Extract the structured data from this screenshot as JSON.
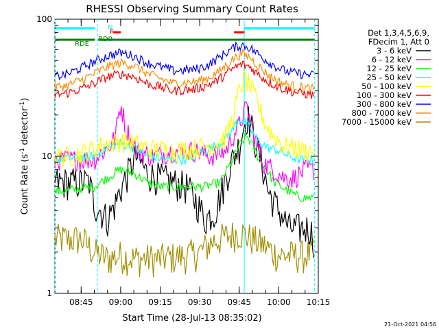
{
  "chart_data": {
    "type": "line",
    "title": "RHESSI Observing Summary Count Rates",
    "xlabel": "Start Time (28-Jul-13 08:35:02)",
    "ylabel_main": "Count Rate (s",
    "ylabel_exp": "-1",
    "ylabel_rest": " detector",
    "ylabel_close": ")",
    "y_scale": "log",
    "ylim": [
      1,
      100
    ],
    "y_ticks": [
      {
        "value": 1,
        "label": "1"
      },
      {
        "value": 10,
        "label": "10"
      },
      {
        "value": 100,
        "label": "100"
      }
    ],
    "xlim": [
      35.03,
      135
    ],
    "x_unit": "minutes after 08:00",
    "x_ticks": [
      {
        "value": 45,
        "label": "08:45"
      },
      {
        "value": 60,
        "label": "09:00"
      },
      {
        "value": 75,
        "label": "09:15"
      },
      {
        "value": 90,
        "label": "09:30"
      },
      {
        "value": 105,
        "label": "09:45"
      },
      {
        "value": 120,
        "label": "10:00"
      },
      {
        "value": 135,
        "label": "10:15"
      }
    ],
    "legend_header": [
      "Det 1,3,4,5,6,9,",
      "FDecim 1, Att 0"
    ],
    "legend_position": "right",
    "series": [
      {
        "name": "3 - 6 keV",
        "color": "#000000",
        "x": [
          35,
          48,
          50,
          55,
          58,
          62,
          66,
          70,
          80,
          85,
          92,
          96,
          99,
          102,
          105,
          108,
          112,
          116,
          120,
          124,
          126,
          130,
          132,
          133
        ],
        "values": [
          6.5,
          6.5,
          4.5,
          3.5,
          4.5,
          7.0,
          10.0,
          7.5,
          6.5,
          6.0,
          3.5,
          4.0,
          6.0,
          9.0,
          12.0,
          20.0,
          11.0,
          5.5,
          4.0,
          3.0,
          3.0,
          3.0,
          3.0,
          2.5
        ]
      },
      {
        "name": "6 - 12 keV",
        "color": "#ff00ff",
        "x": [
          35,
          50,
          56,
          58,
          60,
          62,
          66,
          72,
          80,
          88,
          94,
          100,
          105,
          108,
          110,
          114,
          118,
          122,
          126,
          130,
          133
        ],
        "values": [
          9.5,
          9.5,
          12.0,
          14.0,
          24.0,
          16.0,
          11.0,
          10.0,
          11.0,
          11.0,
          10.0,
          11.0,
          17.0,
          23.0,
          15.0,
          9.0,
          8.0,
          7.0,
          7.0,
          8.0,
          8.0
        ]
      },
      {
        "name": "12 - 25 keV",
        "color": "#00ff00",
        "x": [
          35,
          50,
          55,
          60,
          65,
          70,
          75,
          85,
          92,
          98,
          102,
          105,
          108,
          112,
          118,
          124,
          128,
          133
        ],
        "values": [
          5.5,
          6.0,
          7.0,
          8.0,
          7.5,
          6.5,
          6.0,
          6.0,
          6.0,
          6.5,
          9.0,
          12.0,
          14.0,
          10.0,
          6.5,
          5.5,
          5.0,
          5.0
        ]
      },
      {
        "name": "25 - 50 keV",
        "color": "#00ffff",
        "x": [
          35,
          50,
          55,
          60,
          65,
          70,
          78,
          85,
          92,
          98,
          102,
          105,
          108,
          112,
          116,
          120,
          124,
          128,
          133
        ],
        "values": [
          9.5,
          10.0,
          11.5,
          12.5,
          11.5,
          10.0,
          9.5,
          9.5,
          11.0,
          12.5,
          15.0,
          19.0,
          17.0,
          13.0,
          11.5,
          11.0,
          10.0,
          9.5,
          9.5
        ]
      },
      {
        "name": "50 - 100 keV",
        "color": "#ffff00",
        "x": [
          35,
          40,
          45,
          50,
          55,
          60,
          65,
          70,
          80,
          88,
          93,
          97,
          100,
          103,
          105,
          107,
          109,
          112,
          115,
          118,
          122,
          126,
          130,
          133
        ],
        "values": [
          10.0,
          10.0,
          10.5,
          11.5,
          12.5,
          13.0,
          12.5,
          11.5,
          11.0,
          11.5,
          12.0,
          12.5,
          14.0,
          20.0,
          30.0,
          37.0,
          33.0,
          24.0,
          17.0,
          14.0,
          12.0,
          11.5,
          11.0,
          11.0
        ]
      },
      {
        "name": "100 - 300 keV",
        "color": "#ff0000",
        "x": [
          35,
          40,
          45,
          50,
          55,
          60,
          65,
          70,
          80,
          88,
          93,
          97,
          100,
          103,
          106,
          109,
          112,
          116,
          120,
          124,
          128,
          133
        ],
        "values": [
          28.0,
          29.0,
          31.0,
          34.0,
          38.0,
          40.0,
          38.0,
          34.0,
          30.0,
          31.0,
          33.0,
          36.0,
          40.0,
          44.0,
          47.0,
          45.0,
          40.0,
          35.0,
          32.0,
          30.0,
          29.0,
          28.0
        ]
      },
      {
        "name": "300 - 800 keV",
        "color": "#0000ff",
        "x": [
          35,
          40,
          45,
          50,
          55,
          60,
          65,
          70,
          80,
          88,
          93,
          97,
          100,
          103,
          106,
          109,
          112,
          116,
          120,
          124,
          128,
          133
        ],
        "values": [
          38.0,
          40.0,
          44.0,
          49.0,
          54.0,
          57.0,
          54.0,
          48.0,
          42.0,
          43.0,
          46.0,
          52.0,
          57.0,
          62.0,
          65.0,
          62.0,
          56.0,
          49.0,
          44.0,
          41.0,
          40.0,
          39.0
        ]
      },
      {
        "name": "800 - 7000 keV",
        "color": "#ff8c00",
        "x": [
          35,
          40,
          45,
          50,
          55,
          60,
          65,
          70,
          80,
          88,
          93,
          97,
          100,
          103,
          106,
          109,
          112,
          116,
          120,
          124,
          128,
          133
        ],
        "values": [
          32.0,
          33.0,
          36.0,
          40.0,
          45.0,
          48.0,
          46.0,
          40.0,
          34.0,
          35.0,
          37.0,
          41.0,
          46.0,
          52.0,
          56.0,
          53.0,
          46.0,
          39.0,
          35.0,
          33.0,
          32.0,
          31.0
        ]
      },
      {
        "name": "7000 - 15000 keV",
        "color": "#a09000",
        "x": [
          35,
          45,
          50,
          55,
          60,
          65,
          70,
          75,
          85,
          90,
          95,
          100,
          105,
          110,
          115,
          118,
          120,
          125,
          130,
          133
        ],
        "values": [
          2.5,
          2.5,
          2.0,
          1.8,
          1.9,
          1.8,
          1.8,
          1.8,
          1.9,
          2.0,
          2.4,
          2.6,
          2.8,
          2.5,
          2.2,
          2.0,
          1.9,
          1.9,
          1.9,
          2.0
        ]
      }
    ],
    "vertical_markers": [
      {
        "x": 35.03,
        "style": "dashed",
        "color": "#00ffff"
      },
      {
        "x": 51.2,
        "style": "dashed",
        "color": "#00ffff"
      },
      {
        "x": 106.9,
        "style": "solid",
        "color": "#00ffff"
      },
      {
        "x": 133.6,
        "style": "dashed",
        "color": "#00ffff"
      }
    ],
    "state_bars": [
      {
        "label": "N",
        "color": "#00ffff",
        "segments": [
          [
            35.2,
            50.2
          ],
          [
            106.9,
            133.6
          ]
        ]
      },
      {
        "label": "F",
        "color": "#ff0000",
        "segments": [
          [
            57.0,
            60.0
          ],
          [
            103.0,
            107.0
          ]
        ]
      },
      {
        "label": "RD0",
        "color": "#008000",
        "segments": [
          [
            35.2,
            50.2
          ],
          [
            51.5,
            133.6
          ]
        ]
      },
      {
        "label": "RDE",
        "color": "#008000",
        "segments": []
      }
    ]
  },
  "footer_date": "21-Oct-2021 04:56"
}
